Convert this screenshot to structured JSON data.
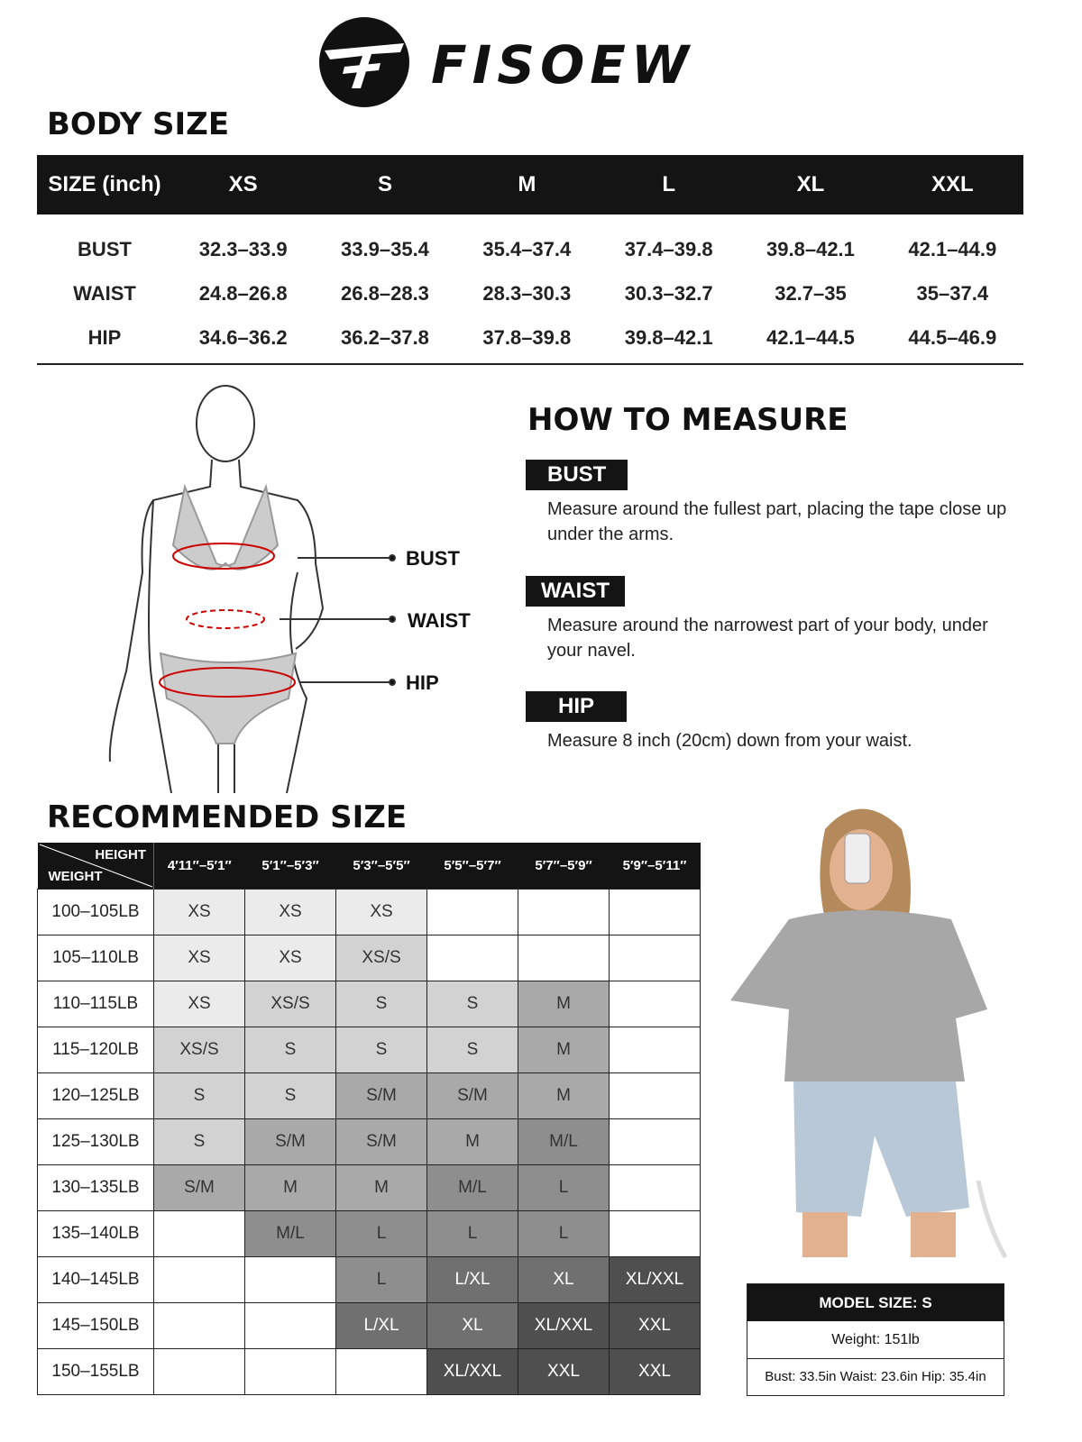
{
  "brand": "FISOEW",
  "body_size": {
    "title": "BODY SIZE",
    "header": [
      "SIZE (inch)",
      "XS",
      "S",
      "M",
      "L",
      "XL",
      "XXL"
    ],
    "rows": [
      [
        "BUST",
        "32.3–33.9",
        "33.9–35.4",
        "35.4–37.4",
        "37.4–39.8",
        "39.8–42.1",
        "42.1–44.9"
      ],
      [
        "WAIST",
        "24.8–26.8",
        "26.8–28.3",
        "28.3–30.3",
        "30.3–32.7",
        "32.7–35",
        "35–37.4"
      ],
      [
        "HIP",
        "34.6–36.2",
        "36.2–37.8",
        "37.8–39.8",
        "39.8–42.1",
        "42.1–44.5",
        "44.5–46.9"
      ]
    ]
  },
  "figure_labels": {
    "bust": "BUST",
    "waist": "WAIST",
    "hip": "HIP"
  },
  "how_to": {
    "title": "HOW TO MEASURE",
    "items": [
      {
        "tag": "BUST",
        "text": "Measure around the fullest part, placing the tape close up under the arms."
      },
      {
        "tag": "WAIST",
        "text": "Measure around the narrowest part of your body, under your navel."
      },
      {
        "tag": "HIP",
        "text": "Measure 8 inch (20cm) down from your waist."
      }
    ]
  },
  "recommended": {
    "title": "RECOMMENDED SIZE",
    "corner_height": "HEIGHT",
    "corner_weight": "WEIGHT",
    "heights": [
      "4′11″–5′1″",
      "5′1″–5′3″",
      "5′3″–5′5″",
      "5′5″–5′7″",
      "5′7″–5′9″",
      "5′9″–5′11″"
    ],
    "rows": [
      {
        "weight": "100–105LB",
        "sizes": [
          "XS",
          "XS",
          "XS",
          "",
          "",
          ""
        ]
      },
      {
        "weight": "105–110LB",
        "sizes": [
          "XS",
          "XS",
          "XS/S",
          "",
          "",
          ""
        ]
      },
      {
        "weight": "110–115LB",
        "sizes": [
          "XS",
          "XS/S",
          "S",
          "S",
          "M",
          ""
        ]
      },
      {
        "weight": "115–120LB",
        "sizes": [
          "XS/S",
          "S",
          "S",
          "S",
          "M",
          ""
        ]
      },
      {
        "weight": "120–125LB",
        "sizes": [
          "S",
          "S",
          "S/M",
          "S/M",
          "M",
          ""
        ]
      },
      {
        "weight": "125–130LB",
        "sizes": [
          "S",
          "S/M",
          "S/M",
          "M",
          "M/L",
          ""
        ]
      },
      {
        "weight": "130–135LB",
        "sizes": [
          "S/M",
          "M",
          "M",
          "M/L",
          "L",
          ""
        ]
      },
      {
        "weight": "135–140LB",
        "sizes": [
          "",
          "M/L",
          "L",
          "L",
          "L",
          ""
        ]
      },
      {
        "weight": "140–145LB",
        "sizes": [
          "",
          "",
          "L",
          "L/XL",
          "XL",
          "XL/XXL"
        ]
      },
      {
        "weight": "145–150LB",
        "sizes": [
          "",
          "",
          "L/XL",
          "XL",
          "XL/XXL",
          "XXL"
        ]
      },
      {
        "weight": "150–155LB",
        "sizes": [
          "",
          "",
          "",
          "XL/XXL",
          "XXL",
          "XXL"
        ]
      }
    ]
  },
  "model": {
    "title": "MODEL SIZE: S",
    "weight": "Weight: 151lb",
    "measures": "Bust: 33.5in Waist: 23.6in Hip: 35.4in"
  },
  "colors": {
    "XS": "#ebebeb",
    "XS/S": "#d2d2d2",
    "S": "#d2d2d2",
    "S/M": "#a9a9a9",
    "M": "#a9a9a9",
    "M/L": "#8e8e8e",
    "L": "#8e8e8e",
    "L/XL": "#707070",
    "XL": "#707070",
    "XL/XXL": "#4f4f4f",
    "XXL": "#4f4f4f"
  }
}
